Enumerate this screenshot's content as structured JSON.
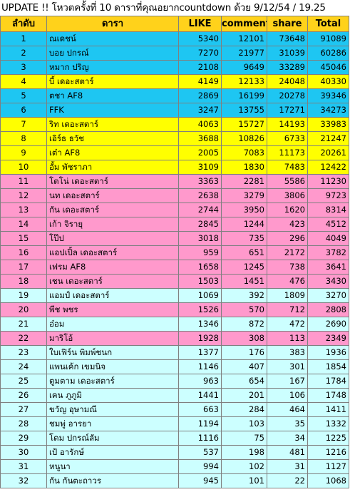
{
  "title": "UPDATE !! โหวตครั้งที่ 10 ดาราที่คุณอยากcountdown ด้วย 9/12/54 / 19.25",
  "headers": [
    "ลำดับ",
    "ดารา",
    "LIKE",
    "comment",
    "share",
    "Total"
  ],
  "colors": {
    "header": "#ffd21b",
    "blue": "#1ec6f2",
    "yellow": "#ffff00",
    "pink": "#ff99cc",
    "cyan": "#ccffff"
  },
  "rows": [
    {
      "rank": "1",
      "name": "ณเดชน์",
      "like": "5340",
      "comment": "12101",
      "share": "73648",
      "total": "91089",
      "color": "blue"
    },
    {
      "rank": "2",
      "name": "บอย ปกรณ์",
      "like": "7270",
      "comment": "21977",
      "share": "31039",
      "total": "60286",
      "color": "blue"
    },
    {
      "rank": "3",
      "name": "หมาก ปริญ",
      "like": "2108",
      "comment": "9649",
      "share": "33289",
      "total": "45046",
      "color": "blue"
    },
    {
      "rank": "4",
      "name": "บี้ เดอะสตาร์",
      "like": "4149",
      "comment": "12133",
      "share": "24048",
      "total": "40330",
      "color": "yellow"
    },
    {
      "rank": "5",
      "name": "ตชา AF8",
      "like": "2869",
      "comment": "16199",
      "share": "20278",
      "total": "39346",
      "color": "blue"
    },
    {
      "rank": "6",
      "name": "FFK",
      "like": "3247",
      "comment": "13755",
      "share": "17271",
      "total": "34273",
      "color": "blue"
    },
    {
      "rank": "7",
      "name": "ริท เดอะสตาร์",
      "like": "4063",
      "comment": "15727",
      "share": "14193",
      "total": "33983",
      "color": "yellow"
    },
    {
      "rank": "8",
      "name": "เอิร์ธ ธวัช",
      "like": "3688",
      "comment": "10826",
      "share": "6733",
      "total": "21247",
      "color": "yellow"
    },
    {
      "rank": "9",
      "name": "เต๋า AF8",
      "like": "2005",
      "comment": "7083",
      "share": "11173",
      "total": "20261",
      "color": "yellow"
    },
    {
      "rank": "10",
      "name": "อั้ม พัชราภา",
      "like": "3109",
      "comment": "1830",
      "share": "7483",
      "total": "12422",
      "color": "yellow"
    },
    {
      "rank": "11",
      "name": "โตโน่ เดอะสตาร์",
      "like": "3363",
      "comment": "2281",
      "share": "5586",
      "total": "11230",
      "color": "pink"
    },
    {
      "rank": "12",
      "name": "นท เดอะสตาร์",
      "like": "2638",
      "comment": "3279",
      "share": "3806",
      "total": "9723",
      "color": "pink"
    },
    {
      "rank": "13",
      "name": "กัน เดอะสตาร์",
      "like": "2744",
      "comment": "3950",
      "share": "1620",
      "total": "8314",
      "color": "pink"
    },
    {
      "rank": "14",
      "name": "เก้า จิรายุ",
      "like": "2845",
      "comment": "1244",
      "share": "423",
      "total": "4512",
      "color": "pink"
    },
    {
      "rank": "15",
      "name": "โป๊ป",
      "like": "3018",
      "comment": "735",
      "share": "296",
      "total": "4049",
      "color": "pink"
    },
    {
      "rank": "16",
      "name": "แอปเปิ้ล เดอะสตาร์",
      "like": "959",
      "comment": "651",
      "share": "2172",
      "total": "3782",
      "color": "pink"
    },
    {
      "rank": "17",
      "name": "เฟรม AF8",
      "like": "1658",
      "comment": "1245",
      "share": "738",
      "total": "3641",
      "color": "pink"
    },
    {
      "rank": "18",
      "name": "เชน เดอะสตาร์",
      "like": "1503",
      "comment": "1451",
      "share": "476",
      "total": "3430",
      "color": "pink"
    },
    {
      "rank": "19",
      "name": "แอมป์ เดอะสตาร์",
      "like": "1069",
      "comment": "392",
      "share": "1809",
      "total": "3270",
      "color": "cyan"
    },
    {
      "rank": "20",
      "name": "พีช พชร",
      "like": "1526",
      "comment": "570",
      "share": "712",
      "total": "2808",
      "color": "pink"
    },
    {
      "rank": "21",
      "name": "อ๋อม",
      "like": "1346",
      "comment": "872",
      "share": "472",
      "total": "2690",
      "color": "cyan"
    },
    {
      "rank": "22",
      "name": "มาริโอ้",
      "like": "1928",
      "comment": "308",
      "share": "113",
      "total": "2349",
      "color": "pink"
    },
    {
      "rank": "23",
      "name": "ใบเฟิร์น พิมพ์ชนก",
      "like": "1377",
      "comment": "176",
      "share": "383",
      "total": "1936",
      "color": "cyan"
    },
    {
      "rank": "24",
      "name": "แพนเค้ก เขมนิจ",
      "like": "1146",
      "comment": "407",
      "share": "301",
      "total": "1854",
      "color": "cyan"
    },
    {
      "rank": "25",
      "name": "ตูมตาม เดอะสตาร์",
      "like": "963",
      "comment": "654",
      "share": "167",
      "total": "1784",
      "color": "cyan"
    },
    {
      "rank": "26",
      "name": "เคน ภูภูมิ",
      "like": "1441",
      "comment": "201",
      "share": "106",
      "total": "1748",
      "color": "cyan"
    },
    {
      "rank": "27",
      "name": "ขวัญ อุษามณี",
      "like": "663",
      "comment": "284",
      "share": "464",
      "total": "1411",
      "color": "cyan"
    },
    {
      "rank": "28",
      "name": "ชมพู่ อารยา",
      "like": "1194",
      "comment": "103",
      "share": "35",
      "total": "1332",
      "color": "cyan"
    },
    {
      "rank": "29",
      "name": "โดม ปกรณ์ลัม",
      "like": "1116",
      "comment": "75",
      "share": "34",
      "total": "1225",
      "color": "cyan"
    },
    {
      "rank": "30",
      "name": "เป้ อารักษ์",
      "like": "537",
      "comment": "198",
      "share": "481",
      "total": "1216",
      "color": "cyan"
    },
    {
      "rank": "31",
      "name": "หนูนา",
      "like": "994",
      "comment": "102",
      "share": "31",
      "total": "1127",
      "color": "cyan"
    },
    {
      "rank": "32",
      "name": "กัน กันตะถาวร",
      "like": "945",
      "comment": "101",
      "share": "22",
      "total": "1068",
      "color": "cyan"
    }
  ]
}
